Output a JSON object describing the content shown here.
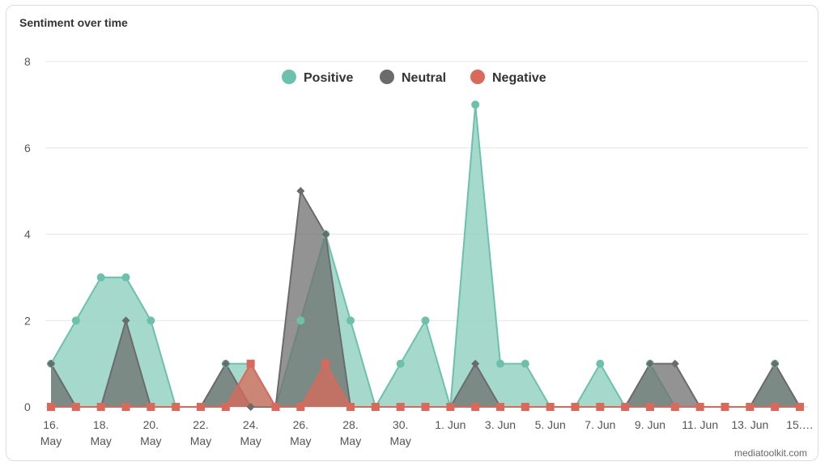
{
  "title": "Sentiment over time",
  "credit": "mediatoolkit.com",
  "chart_data": {
    "type": "area",
    "title": "Sentiment over time",
    "ylim": [
      0,
      8
    ],
    "yticks": [
      0,
      2,
      4,
      6,
      8
    ],
    "categories": [
      "16. May",
      "17. May",
      "18. May",
      "19. May",
      "20. May",
      "21. May",
      "22. May",
      "23. May",
      "24. May",
      "25. May",
      "26. May",
      "27. May",
      "28. May",
      "29. May",
      "30. May",
      "31. May",
      "1. Jun",
      "2. Jun",
      "3. Jun",
      "4. Jun",
      "5. Jun",
      "6. Jun",
      "7. Jun",
      "8. Jun",
      "9. Jun",
      "10. Jun",
      "11. Jun",
      "12. Jun",
      "13. Jun",
      "14. Jun",
      "15. Jun"
    ],
    "xticks": [
      {
        "index": 0,
        "line1": "16.",
        "line2": "May"
      },
      {
        "index": 2,
        "line1": "18.",
        "line2": "May"
      },
      {
        "index": 4,
        "line1": "20.",
        "line2": "May"
      },
      {
        "index": 6,
        "line1": "22.",
        "line2": "May"
      },
      {
        "index": 8,
        "line1": "24.",
        "line2": "May"
      },
      {
        "index": 10,
        "line1": "26.",
        "line2": "May"
      },
      {
        "index": 12,
        "line1": "28.",
        "line2": "May"
      },
      {
        "index": 14,
        "line1": "30.",
        "line2": "May"
      },
      {
        "index": 16,
        "line1": "1. Jun",
        "line2": ""
      },
      {
        "index": 18,
        "line1": "3. Jun",
        "line2": ""
      },
      {
        "index": 20,
        "line1": "5. Jun",
        "line2": ""
      },
      {
        "index": 22,
        "line1": "7. Jun",
        "line2": ""
      },
      {
        "index": 24,
        "line1": "9. Jun",
        "line2": ""
      },
      {
        "index": 26,
        "line1": "11. Jun",
        "line2": ""
      },
      {
        "index": 28,
        "line1": "13. Jun",
        "line2": ""
      },
      {
        "index": 30,
        "line1": "15.…",
        "line2": ""
      }
    ],
    "series": [
      {
        "name": "Positive",
        "color": "#6cc1ad",
        "fill": "#8dcfbe",
        "marker": "circle",
        "values": [
          1,
          2,
          3,
          3,
          2,
          0,
          0,
          1,
          1,
          0,
          2,
          4,
          2,
          0,
          1,
          2,
          0,
          7,
          1,
          1,
          0,
          0,
          1,
          0,
          1,
          0,
          0,
          0,
          0,
          1,
          0
        ]
      },
      {
        "name": "Neutral",
        "color": "#6b6b6b",
        "fill": "#6f6f6f",
        "marker": "diamond",
        "values": [
          1,
          0,
          0,
          2,
          0,
          0,
          0,
          1,
          0,
          0,
          5,
          4,
          0,
          0,
          0,
          0,
          0,
          1,
          0,
          0,
          0,
          0,
          0,
          0,
          1,
          1,
          0,
          0,
          0,
          1,
          0
        ]
      },
      {
        "name": "Negative",
        "color": "#d9695a",
        "fill": "#d9695a",
        "marker": "square",
        "values": [
          0,
          0,
          0,
          0,
          0,
          0,
          0,
          0,
          1,
          0,
          0,
          1,
          0,
          0,
          0,
          0,
          0,
          0,
          0,
          0,
          0,
          0,
          0,
          0,
          0,
          0,
          0,
          0,
          0,
          0,
          0
        ]
      }
    ],
    "legend": [
      "Positive",
      "Neutral",
      "Negative"
    ],
    "legend_position": "top-center",
    "grid": true
  }
}
